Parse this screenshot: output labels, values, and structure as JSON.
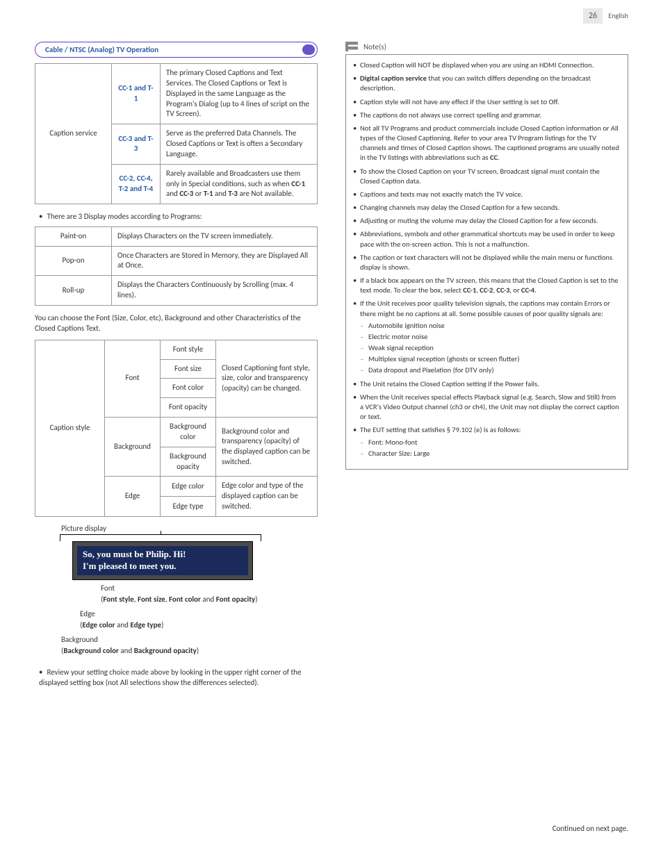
{
  "page": {
    "number": "26",
    "lang": "English",
    "continued": "Continued on next page."
  },
  "sectionHeader": "Cable / NTSC (Analog) TV Operation",
  "captionService": {
    "rowLabel": "Caption service",
    "rows": [
      {
        "code": "CC-1 and T-1",
        "desc": "The primary Closed Captions and Text Services. The Closed Captions or Text is Displayed in the same Language as the Program's Dialog (up to 4 lines of script on the TV Screen)."
      },
      {
        "code": "CC-3 and T-3",
        "desc": "Serve as the preferred Data Channels. The Closed Captions or Text is often a Secondary Language."
      },
      {
        "code": "CC-2, CC-4, T-2 and T-4",
        "desc_pre": "Rarely available and Broadcasters use them only in Special conditions, such as when ",
        "desc_bold1": "CC-1",
        "desc_mid": " and ",
        "desc_bold2": "CC-3",
        "desc_mid2": " or ",
        "desc_bold3": "T-1",
        "desc_mid3": " and ",
        "desc_bold4": "T-3",
        "desc_post": " are Not available."
      }
    ]
  },
  "displayModesIntro": "There are 3 Display modes according to Programs:",
  "displayModes": [
    {
      "name": "Paint-on",
      "desc": "Displays Characters on the TV screen immediately."
    },
    {
      "name": "Pop-on",
      "desc": "Once Characters are Stored in Memory, they are Displayed All at Once."
    },
    {
      "name": "Roll-up",
      "desc": "Displays the Characters Continuously by Scrolling (max. 4 lines)."
    }
  ],
  "styleIntro": "You can choose the Font (Size, Color, etc), Background and other Characteristics of the Closed Captions Text.",
  "captionStyle": {
    "rowLabel": "Caption style",
    "groups": [
      {
        "group": "Font",
        "items": [
          "Font style",
          "Font size",
          "Font color",
          "Font opacity"
        ],
        "desc": "Closed Captioning font style, size, color and transparency (opacity) can be changed."
      },
      {
        "group": "Background",
        "items": [
          "Background color",
          "Background opacity"
        ],
        "desc": "Background color and transparency (opacity) of the displayed caption can be switched."
      },
      {
        "group": "Edge",
        "items": [
          "Edge color",
          "Edge type"
        ],
        "desc": "Edge color and type of the displayed caption can be switched."
      }
    ]
  },
  "picture": {
    "label": "Picture display",
    "captionLine1": "So, you must be Philip. Hi!",
    "captionLine2": "I'm pleased to meet you.",
    "font": {
      "title": "Font",
      "detail_pre": "(",
      "b1": "Font style",
      "s1": ", ",
      "b2": "Font size",
      "s2": ", ",
      "b3": "Font color",
      "s3": " and ",
      "b4": "Font opacity",
      "detail_post": ")"
    },
    "edge": {
      "title": "Edge",
      "detail_pre": "(",
      "b1": "Edge color",
      "s1": " and ",
      "b2": "Edge type",
      "detail_post": ")"
    },
    "background": {
      "title": "Background",
      "detail_pre": "(",
      "b1": "Background color",
      "s1": " and ",
      "b2": "Background opacity",
      "detail_post": ")"
    }
  },
  "reviewNote": "Review your setting choice made above by looking in the upper right corner of the displayed setting box (not All selections show the differences selected).",
  "notes": {
    "header": "Note(s)",
    "items": [
      {
        "text": "Closed Caption will NOT be displayed when you are using an HDMI Connection."
      },
      {
        "pre": "",
        "b": "Digital caption service",
        "post": " that you can switch differs depending on the broadcast description."
      },
      {
        "text": "Caption style will not have any effect if the User setting is set to Off."
      },
      {
        "text": "The captions do not always use correct spelling and grammar."
      },
      {
        "pre": "Not all TV Programs and product commercials include Closed Caption information or All types of the Closed Captioning. Refer to your area TV Program listings for the TV channels and times of Closed Caption shows. The captioned programs are usually noted in the TV listings with abbreviations such as ",
        "b": "CC",
        "post": "."
      },
      {
        "text": "To show the Closed Caption on your TV screen, Broadcast signal must contain the Closed Caption data."
      },
      {
        "text": "Captions and texts may not exactly match the TV voice."
      },
      {
        "text": "Changing channels may delay the Closed Caption for a few seconds."
      },
      {
        "text": "Adjusting or muting the volume may delay the Closed Caption for a few seconds."
      },
      {
        "text": "Abbreviations, symbols and other grammatical shortcuts may be used in order to keep pace with the on-screen action. This is not a malfunction."
      },
      {
        "text": "The caption or text characters will not be displayed while the main menu or functions display is shown."
      },
      {
        "pre": "If a black box appears on the TV screen, this means that the Closed Caption is set to the text mode. To clear the box, select ",
        "b": "CC-1",
        "mid1": ", ",
        "b2": "CC-2",
        "mid2": ", ",
        "b3": "CC-3",
        "mid3": ", or ",
        "b4": "CC-4",
        "post": "."
      },
      {
        "text": "If the Unit receives poor quality television signals, the captions may contain Errors or there might be no captions at all. Some possible causes of poor quality signals are:",
        "sub": [
          "Automobile ignition noise",
          "Electric motor noise",
          "Weak signal reception",
          "Multiplex signal reception (ghosts or screen flutter)",
          "Data dropout and Pixelation (for DTV only)"
        ]
      },
      {
        "text": "The Unit retains the Closed Caption setting if the Power fails."
      },
      {
        "text": "When the Unit receives special effects Playback signal (e.g. Search, Slow and Still) from a VCR's Video Output channel (ch3 or ch4), the Unit may not display the correct caption or text."
      },
      {
        "text": "The EUT setting that satisfies § 79.102 (e) is as follows:",
        "sub": [
          "Font: Mono-font",
          "Character Size: Large"
        ]
      }
    ]
  }
}
